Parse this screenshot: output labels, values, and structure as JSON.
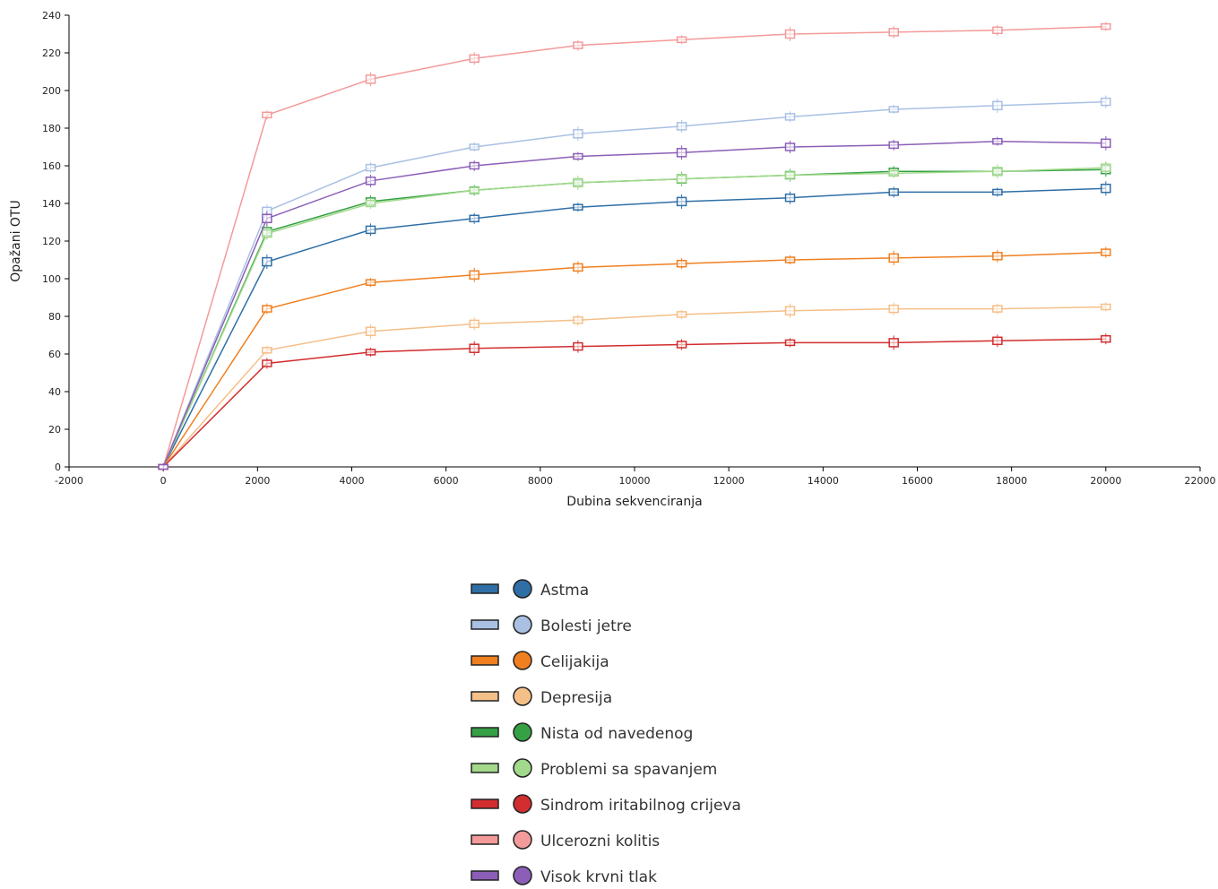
{
  "chart_data": {
    "type": "line",
    "xlabel": "Dubina sekvenciranja",
    "ylabel": "Opažani OTU",
    "xlim": [
      -2000,
      22000
    ],
    "ylim": [
      0,
      240
    ],
    "x_ticks": [
      -2000,
      0,
      2000,
      4000,
      6000,
      8000,
      10000,
      12000,
      14000,
      16000,
      18000,
      20000,
      22000
    ],
    "y_ticks": [
      0,
      20,
      40,
      60,
      80,
      100,
      120,
      140,
      160,
      180,
      200,
      220,
      240
    ],
    "grid": false,
    "legend_position": "bottom-center",
    "x": [
      0,
      2200,
      4400,
      6600,
      8800,
      11000,
      13300,
      15500,
      17700,
      20000
    ],
    "series": [
      {
        "name": "Astma",
        "color": "#2f6fa6",
        "values": [
          0,
          109,
          126,
          132,
          138,
          141,
          143,
          146,
          146,
          148
        ]
      },
      {
        "name": "Bolesti jetre",
        "color": "#a9c0e3",
        "values": [
          0,
          136,
          159,
          170,
          177,
          181,
          186,
          190,
          192,
          194
        ]
      },
      {
        "name": "Celijakija",
        "color": "#f07f20",
        "values": [
          0,
          84,
          98,
          102,
          106,
          108,
          110,
          111,
          112,
          114
        ]
      },
      {
        "name": "Depresija",
        "color": "#f5bf88",
        "values": [
          0,
          62,
          72,
          76,
          78,
          81,
          83,
          84,
          84,
          85
        ]
      },
      {
        "name": "Nista od navedenog",
        "color": "#35a144",
        "values": [
          0,
          125,
          141,
          147,
          151,
          153,
          155,
          157,
          157,
          158
        ]
      },
      {
        "name": "Problemi sa spavanjem",
        "color": "#a2d98b",
        "values": [
          0,
          124,
          140,
          147,
          151,
          153,
          155,
          156,
          157,
          159
        ]
      },
      {
        "name": "Sindrom iritabilnog crijeva",
        "color": "#d22d2f",
        "values": [
          0,
          55,
          61,
          63,
          64,
          65,
          66,
          66,
          67,
          68
        ]
      },
      {
        "name": "Ulcerozni kolitis",
        "color": "#f39a9a",
        "values": [
          0,
          187,
          206,
          217,
          224,
          227,
          230,
          231,
          232,
          234
        ]
      },
      {
        "name": "Visok krvni tlak",
        "color": "#8b5fb7",
        "values": [
          0,
          132,
          152,
          160,
          165,
          167,
          170,
          171,
          173,
          172
        ]
      }
    ]
  }
}
